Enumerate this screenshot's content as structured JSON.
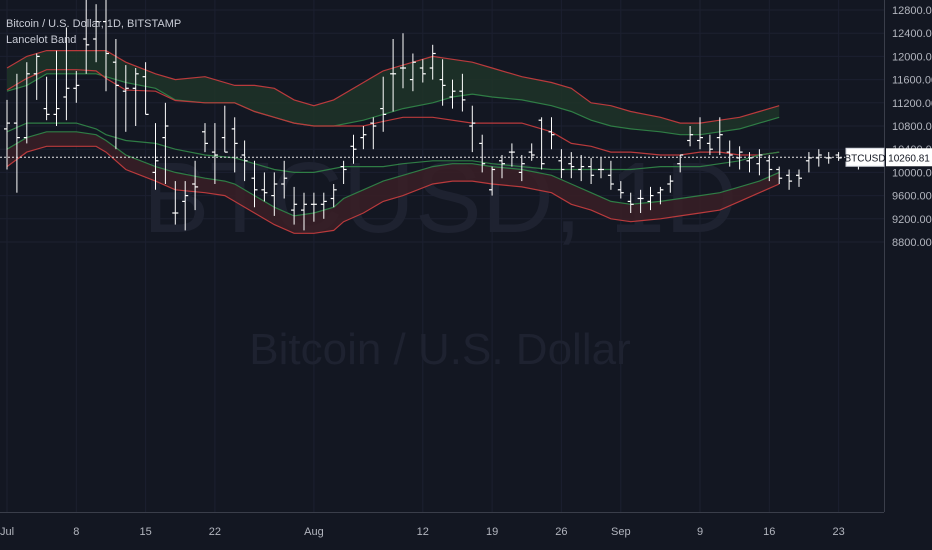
{
  "header": {
    "title": "Bitcoin / U.S. Dollar, 1D, BITSTAMP",
    "indicator": "Lancelot Band"
  },
  "watermark": {
    "symbol": "BTCUSD, 1D",
    "name": "Bitcoin / U.S. Dollar"
  },
  "price_label": {
    "symbol": "BTCUSD",
    "value": "10260.81"
  },
  "colors": {
    "background": "#131722",
    "grid": "#1c2030",
    "candle": "#ffffff",
    "upper_fill": "#1e3428",
    "lower_fill": "#3a1e26",
    "red_line": "#b93a3c",
    "green_line": "#2f7d45"
  },
  "chart_data": {
    "type": "ohlc",
    "ylim": [
      8600,
      13000
    ],
    "y_ticks": [
      "8800.00",
      "9200.00",
      "9600.00",
      "10000.00",
      "10400.00",
      "10800.00",
      "11200.00",
      "11600.00",
      "12000.00",
      "12400.00",
      "12800.00"
    ],
    "x_ticks": [
      {
        "label": "Jul",
        "day": 1
      },
      {
        "label": "8",
        "day": 8
      },
      {
        "label": "15",
        "day": 15
      },
      {
        "label": "22",
        "day": 22
      },
      {
        "label": "Aug",
        "day": 32
      },
      {
        "label": "12",
        "day": 43
      },
      {
        "label": "19",
        "day": 50
      },
      {
        "label": "26",
        "day": 57
      },
      {
        "label": "Sep",
        "day": 63
      },
      {
        "label": "9",
        "day": 71
      },
      {
        "label": "16",
        "day": 78
      },
      {
        "label": "23",
        "day": 85
      }
    ],
    "last_price": 10260.81,
    "candles": [
      [
        10750,
        11250,
        10050,
        10850
      ],
      [
        10850,
        11700,
        9650,
        10600
      ],
      [
        10600,
        11900,
        10500,
        11700
      ],
      [
        11700,
        12050,
        11250,
        12000
      ],
      [
        11100,
        11650,
        10900,
        11000
      ],
      [
        11000,
        12100,
        10800,
        11100
      ],
      [
        11300,
        12500,
        10900,
        11450
      ],
      [
        11450,
        11750,
        11200,
        11500
      ],
      [
        12300,
        13150,
        11700,
        12200
      ],
      [
        12300,
        12900,
        11900,
        12600
      ],
      [
        12600,
        13150,
        11400,
        12050
      ],
      [
        11900,
        12300,
        10400,
        11500
      ],
      [
        11400,
        11850,
        10700,
        11450
      ],
      [
        11450,
        11800,
        10800,
        11700
      ],
      [
        11650,
        11900,
        11000,
        11000
      ],
      [
        10000,
        10850,
        9700,
        10200
      ],
      [
        10600,
        11200,
        9800,
        10800
      ],
      [
        9300,
        9850,
        9100,
        9300
      ],
      [
        9500,
        9850,
        9000,
        9600
      ],
      [
        9800,
        10200,
        9350,
        9750
      ],
      [
        10700,
        10850,
        10350,
        10500
      ],
      [
        10350,
        10850,
        9800,
        10300
      ],
      [
        10600,
        11150,
        10350,
        10350
      ],
      [
        10750,
        10950,
        10000,
        10500
      ],
      [
        10300,
        10550,
        9850,
        10200
      ],
      [
        9900,
        10200,
        9400,
        9700
      ],
      [
        9700,
        10000,
        9500,
        9650
      ],
      [
        9600,
        10000,
        9250,
        9800
      ],
      [
        9800,
        10200,
        9550,
        9900
      ],
      [
        9350,
        9750,
        9100,
        9450
      ],
      [
        9350,
        9650,
        9000,
        9450
      ],
      [
        9450,
        9650,
        9150,
        9450
      ],
      [
        9450,
        9650,
        9200,
        9500
      ],
      [
        9550,
        9800,
        9400,
        9700
      ],
      [
        10100,
        10200,
        9800,
        10050
      ],
      [
        10450,
        10650,
        10150,
        10400
      ],
      [
        10600,
        10800,
        10400,
        10650
      ],
      [
        10850,
        10950,
        10400,
        10800
      ],
      [
        11100,
        11650,
        10700,
        11000
      ],
      [
        11700,
        12300,
        11050,
        11700
      ],
      [
        11800,
        12400,
        11450,
        11800
      ],
      [
        11600,
        12050,
        11400,
        11900
      ],
      [
        11800,
        11950,
        11550,
        11700
      ],
      [
        11800,
        12200,
        11600,
        12050
      ],
      [
        11600,
        11950,
        11150,
        11500
      ],
      [
        11300,
        11600,
        11100,
        11400
      ],
      [
        11400,
        11700,
        11050,
        11250
      ],
      [
        10800,
        11150,
        10350,
        10850
      ],
      [
        10500,
        10650,
        10000,
        10150
      ],
      [
        9700,
        10100,
        9600,
        10050
      ],
      [
        10200,
        10300,
        9900,
        10150
      ],
      [
        10350,
        10500,
        10100,
        10350
      ],
      [
        10000,
        10300,
        9850,
        10150
      ],
      [
        10350,
        10500,
        10200,
        10300
      ],
      [
        10900,
        10950,
        10050,
        10150
      ],
      [
        10700,
        10950,
        10400,
        10650
      ],
      [
        10200,
        10400,
        9900,
        10050
      ],
      [
        10150,
        10350,
        9900,
        10100
      ],
      [
        10050,
        10300,
        9850,
        10100
      ],
      [
        10100,
        10250,
        9800,
        9950
      ],
      [
        10050,
        10250,
        9900,
        10050
      ],
      [
        9950,
        10200,
        9700,
        9800
      ],
      [
        9700,
        9850,
        9550,
        9650
      ],
      [
        9500,
        9650,
        9300,
        9450
      ],
      [
        9550,
        9700,
        9300,
        9550
      ],
      [
        9500,
        9750,
        9350,
        9600
      ],
      [
        9650,
        9750,
        9450,
        9700
      ],
      [
        9800,
        9950,
        9650,
        9850
      ],
      [
        10150,
        10300,
        10000,
        10300
      ],
      [
        10550,
        10800,
        10450,
        10650
      ],
      [
        10550,
        10950,
        10400,
        10600
      ],
      [
        10500,
        10650,
        10300,
        10400
      ],
      [
        10600,
        10950,
        10300,
        10650
      ],
      [
        10350,
        10550,
        10100,
        10300
      ],
      [
        10250,
        10450,
        10050,
        10350
      ],
      [
        10200,
        10350,
        10000,
        10250
      ],
      [
        10150,
        10400,
        9950,
        10300
      ],
      [
        10200,
        10300,
        9850,
        10050
      ],
      [
        10050,
        10100,
        9800,
        9900
      ],
      [
        9950,
        10050,
        9700,
        9850
      ],
      [
        9950,
        10050,
        9750,
        9900
      ],
      [
        10200,
        10350,
        10000,
        10250
      ],
      [
        10250,
        10400,
        10100,
        10300
      ],
      [
        10250,
        10350,
        10150,
        10250
      ],
      [
        10300,
        10350,
        10200,
        10250
      ],
      [
        10300,
        10350,
        10200,
        10250
      ],
      [
        10260,
        10350,
        10050,
        10260
      ]
    ],
    "bands": {
      "upper_red": [
        [
          0,
          11420
        ],
        [
          2,
          11620
        ],
        [
          4,
          11770
        ],
        [
          7,
          11770
        ],
        [
          9,
          11750
        ],
        [
          10,
          11620
        ],
        [
          12,
          11420
        ],
        [
          15,
          11400
        ],
        [
          17,
          11240
        ],
        [
          20,
          11200
        ],
        [
          22,
          11200
        ],
        [
          23,
          11200
        ],
        [
          25,
          11050
        ],
        [
          27,
          10950
        ],
        [
          29,
          10850
        ],
        [
          31,
          10800
        ],
        [
          34,
          10800
        ],
        [
          36,
          10800
        ],
        [
          38,
          10880
        ],
        [
          40,
          10950
        ],
        [
          43,
          10950
        ],
        [
          47,
          10850
        ],
        [
          49,
          10850
        ],
        [
          52,
          10850
        ],
        [
          55,
          10700
        ],
        [
          57,
          10500
        ],
        [
          59,
          10450
        ],
        [
          61,
          10350
        ],
        [
          63,
          10350
        ],
        [
          66,
          10300
        ],
        [
          68,
          10300
        ],
        [
          70,
          10350
        ],
        [
          72,
          10350
        ],
        [
          74,
          10300
        ],
        [
          76,
          10300
        ],
        [
          78,
          10350
        ]
      ],
      "upper_green": [
        [
          0,
          10700
        ],
        [
          2,
          10850
        ],
        [
          4,
          10850
        ],
        [
          7,
          10850
        ],
        [
          9,
          10750
        ],
        [
          10,
          10650
        ],
        [
          12,
          10550
        ],
        [
          15,
          10500
        ],
        [
          17,
          10400
        ],
        [
          20,
          10300
        ],
        [
          23,
          10250
        ],
        [
          25,
          10150
        ],
        [
          27,
          10050
        ],
        [
          29,
          10000
        ],
        [
          31,
          10000
        ],
        [
          34,
          10100
        ],
        [
          36,
          10100
        ],
        [
          38,
          10100
        ],
        [
          40,
          10150
        ],
        [
          43,
          10200
        ],
        [
          47,
          10200
        ],
        [
          49,
          10150
        ],
        [
          52,
          10100
        ],
        [
          55,
          10050
        ],
        [
          57,
          10050
        ],
        [
          59,
          10050
        ],
        [
          61,
          10050
        ],
        [
          63,
          10050
        ],
        [
          66,
          10100
        ],
        [
          68,
          10100
        ],
        [
          70,
          10100
        ],
        [
          72,
          10150
        ],
        [
          74,
          10200
        ],
        [
          76,
          10300
        ],
        [
          78,
          10350
        ]
      ],
      "outer_red": [
        [
          0,
          11800
        ],
        [
          2,
          12000
        ],
        [
          4,
          12100
        ],
        [
          7,
          12100
        ],
        [
          9,
          12100
        ],
        [
          10,
          12100
        ],
        [
          12,
          11900
        ],
        [
          15,
          11700
        ],
        [
          17,
          11600
        ],
        [
          20,
          11650
        ],
        [
          23,
          11500
        ],
        [
          25,
          11500
        ],
        [
          27,
          11450
        ],
        [
          29,
          11250
        ],
        [
          31,
          11150
        ],
        [
          33,
          11250
        ],
        [
          36,
          11550
        ],
        [
          38,
          11750
        ],
        [
          40,
          11850
        ],
        [
          43,
          12000
        ],
        [
          45,
          11950
        ],
        [
          47,
          11900
        ],
        [
          49,
          11800
        ],
        [
          52,
          11650
        ],
        [
          55,
          11550
        ],
        [
          57,
          11450
        ],
        [
          59,
          11200
        ],
        [
          61,
          11150
        ],
        [
          63,
          11050
        ],
        [
          66,
          10950
        ],
        [
          68,
          10850
        ],
        [
          70,
          10850
        ],
        [
          72,
          10900
        ],
        [
          74,
          10950
        ],
        [
          76,
          11050
        ],
        [
          78,
          11150
        ]
      ],
      "outer_green": [
        [
          0,
          11400
        ],
        [
          2,
          11500
        ],
        [
          4,
          11700
        ],
        [
          7,
          11700
        ],
        [
          9,
          11700
        ],
        [
          10,
          11650
        ],
        [
          12,
          11550
        ],
        [
          15,
          11450
        ],
        [
          17,
          11250
        ],
        [
          20,
          11200
        ],
        [
          23,
          11200
        ],
        [
          25,
          11050
        ],
        [
          27,
          10950
        ],
        [
          29,
          10850
        ],
        [
          31,
          10800
        ],
        [
          33,
          10800
        ],
        [
          36,
          10900
        ],
        [
          38,
          11000
        ],
        [
          40,
          11100
        ],
        [
          43,
          11200
        ],
        [
          45,
          11300
        ],
        [
          47,
          11350
        ],
        [
          49,
          11300
        ],
        [
          52,
          11250
        ],
        [
          55,
          11150
        ],
        [
          57,
          11050
        ],
        [
          59,
          10900
        ],
        [
          61,
          10800
        ],
        [
          63,
          10750
        ],
        [
          66,
          10700
        ],
        [
          68,
          10650
        ],
        [
          70,
          10650
        ],
        [
          72,
          10700
        ],
        [
          74,
          10750
        ],
        [
          76,
          10850
        ],
        [
          78,
          10950
        ]
      ],
      "lower_red": [
        [
          0,
          10100
        ],
        [
          2,
          10350
        ],
        [
          4,
          10450
        ],
        [
          7,
          10450
        ],
        [
          9,
          10450
        ],
        [
          10,
          10350
        ],
        [
          12,
          10050
        ],
        [
          15,
          9850
        ],
        [
          17,
          9700
        ],
        [
          20,
          9650
        ],
        [
          22,
          9600
        ],
        [
          23,
          9500
        ],
        [
          25,
          9300
        ],
        [
          27,
          9100
        ],
        [
          29,
          8950
        ],
        [
          31,
          8950
        ],
        [
          33,
          9000
        ],
        [
          34,
          9150
        ],
        [
          36,
          9300
        ],
        [
          38,
          9500
        ],
        [
          40,
          9600
        ],
        [
          43,
          9800
        ],
        [
          45,
          9850
        ],
        [
          47,
          9850
        ],
        [
          49,
          9800
        ],
        [
          52,
          9750
        ],
        [
          55,
          9650
        ],
        [
          57,
          9450
        ],
        [
          59,
          9350
        ],
        [
          61,
          9200
        ],
        [
          63,
          9150
        ],
        [
          66,
          9200
        ],
        [
          68,
          9250
        ],
        [
          70,
          9300
        ],
        [
          72,
          9350
        ],
        [
          74,
          9500
        ],
        [
          76,
          9650
        ],
        [
          78,
          9800
        ]
      ],
      "lower_green": [
        [
          0,
          10400
        ],
        [
          2,
          10600
        ],
        [
          4,
          10700
        ],
        [
          7,
          10700
        ],
        [
          9,
          10650
        ],
        [
          10,
          10550
        ],
        [
          12,
          10300
        ],
        [
          15,
          10100
        ],
        [
          17,
          10000
        ],
        [
          20,
          9900
        ],
        [
          22,
          9850
        ],
        [
          23,
          9800
        ],
        [
          25,
          9600
        ],
        [
          27,
          9400
        ],
        [
          29,
          9250
        ],
        [
          31,
          9300
        ],
        [
          33,
          9400
        ],
        [
          34,
          9550
        ],
        [
          36,
          9700
        ],
        [
          38,
          9850
        ],
        [
          40,
          9950
        ],
        [
          43,
          10100
        ],
        [
          45,
          10150
        ],
        [
          47,
          10150
        ],
        [
          49,
          10100
        ],
        [
          52,
          10050
        ],
        [
          55,
          9950
        ],
        [
          57,
          9800
        ],
        [
          59,
          9650
        ],
        [
          61,
          9500
        ],
        [
          63,
          9450
        ],
        [
          66,
          9500
        ],
        [
          68,
          9550
        ],
        [
          70,
          9600
        ],
        [
          72,
          9650
        ],
        [
          74,
          9750
        ],
        [
          76,
          9850
        ],
        [
          78,
          10000
        ]
      ]
    }
  }
}
